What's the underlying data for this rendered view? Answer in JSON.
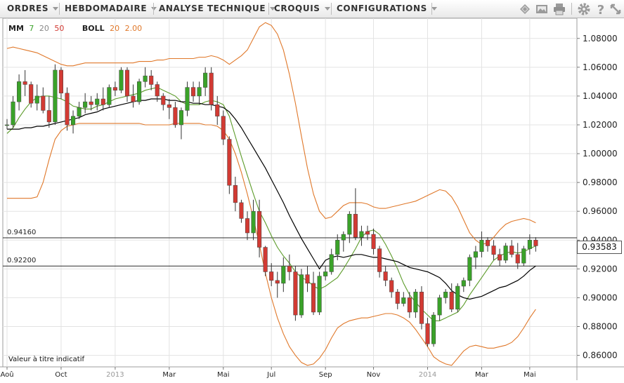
{
  "toolbar": {
    "menus": [
      {
        "label": "ORDRES"
      },
      {
        "label": "HEBDOMADAIRE"
      },
      {
        "label": "ANALYSE TECHNIQUE"
      },
      {
        "label": "CROQUIS"
      },
      {
        "label": "CONFIGURATIONS"
      }
    ],
    "icons": [
      "layers-icon",
      "image-icon",
      "print-icon",
      "gear-icon",
      "help-icon",
      "expand-icon"
    ]
  },
  "legend": {
    "mm_label": "MM",
    "mm_periods": [
      "7",
      "20",
      "50"
    ],
    "boll_label": "BOLL",
    "boll_params": [
      "20",
      "2.00"
    ]
  },
  "current_price": "0.93583",
  "footnote": "Valeur à titre indicatif",
  "colors": {
    "up_candle": "#3aa229",
    "down_candle": "#d23a33",
    "ma_short": "#5c9b2a",
    "ma_long": "#000000",
    "bollinger": "#e0782a",
    "grid": "#e3e3e3"
  },
  "chart_data": {
    "type": "candlestick",
    "ylim": [
      0.852,
      1.094
    ],
    "y_ticks": [
      "1.08000",
      "1.06000",
      "1.04000",
      "1.02000",
      "1.00000",
      "0.98000",
      "0.96000",
      "0.94000",
      "0.92000",
      "0.90000",
      "0.88000",
      "0.86000"
    ],
    "x_ticks": [
      {
        "week": 0,
        "label": "Aoû"
      },
      {
        "week": 9,
        "label": "Oct"
      },
      {
        "week": 18,
        "label": "2013"
      },
      {
        "week": 27,
        "label": "Mar"
      },
      {
        "week": 36,
        "label": "Mai"
      },
      {
        "week": 44,
        "label": "Jul"
      },
      {
        "week": 53,
        "label": "Sep"
      },
      {
        "week": 61,
        "label": "Nov"
      },
      {
        "week": 70,
        "label": "2014"
      },
      {
        "week": 79,
        "label": "Mar"
      },
      {
        "week": 87,
        "label": "Mai"
      }
    ],
    "horizontal_lines": [
      {
        "value": 0.9416,
        "label": "0.94160"
      },
      {
        "value": 0.922,
        "label": "0.92200"
      }
    ],
    "candles": [
      [
        1.02,
        1.024,
        1.017,
        1.02
      ],
      [
        1.02,
        1.04,
        1.018,
        1.036
      ],
      [
        1.036,
        1.055,
        1.03,
        1.05
      ],
      [
        1.05,
        1.058,
        1.04,
        1.048
      ],
      [
        1.048,
        1.05,
        1.032,
        1.035
      ],
      [
        1.035,
        1.048,
        1.03,
        1.04
      ],
      [
        1.04,
        1.046,
        1.028,
        1.03
      ],
      [
        1.03,
        1.04,
        1.018,
        1.022
      ],
      [
        1.022,
        1.062,
        1.02,
        1.058
      ],
      [
        1.058,
        1.06,
        1.038,
        1.042
      ],
      [
        1.042,
        1.046,
        1.016,
        1.02
      ],
      [
        1.02,
        1.03,
        1.014,
        1.026
      ],
      [
        1.026,
        1.036,
        1.024,
        1.032
      ],
      [
        1.032,
        1.042,
        1.028,
        1.036
      ],
      [
        1.036,
        1.04,
        1.03,
        1.034
      ],
      [
        1.034,
        1.042,
        1.03,
        1.038
      ],
      [
        1.038,
        1.046,
        1.03,
        1.034
      ],
      [
        1.034,
        1.048,
        1.032,
        1.046
      ],
      [
        1.046,
        1.05,
        1.04,
        1.044
      ],
      [
        1.044,
        1.06,
        1.042,
        1.058
      ],
      [
        1.058,
        1.06,
        1.036,
        1.04
      ],
      [
        1.04,
        1.048,
        1.032,
        1.036
      ],
      [
        1.036,
        1.052,
        1.034,
        1.05
      ],
      [
        1.05,
        1.06,
        1.046,
        1.054
      ],
      [
        1.054,
        1.058,
        1.044,
        1.048
      ],
      [
        1.048,
        1.05,
        1.036,
        1.04
      ],
      [
        1.04,
        1.042,
        1.03,
        1.034
      ],
      [
        1.034,
        1.038,
        1.024,
        1.032
      ],
      [
        1.032,
        1.036,
        1.018,
        1.02
      ],
      [
        1.02,
        1.032,
        1.01,
        1.03
      ],
      [
        1.03,
        1.05,
        1.026,
        1.046
      ],
      [
        1.046,
        1.05,
        1.036,
        1.04
      ],
      [
        1.04,
        1.05,
        1.034,
        1.046
      ],
      [
        1.046,
        1.06,
        1.04,
        1.056
      ],
      [
        1.056,
        1.06,
        1.03,
        1.034
      ],
      [
        1.034,
        1.04,
        1.02,
        1.026
      ],
      [
        1.026,
        1.03,
        1.006,
        1.01
      ],
      [
        1.01,
        1.012,
        0.972,
        0.978
      ],
      [
        0.978,
        0.984,
        0.96,
        0.966
      ],
      [
        0.966,
        0.968,
        0.952,
        0.955
      ],
      [
        0.955,
        0.96,
        0.94,
        0.945
      ],
      [
        0.945,
        0.968,
        0.94,
        0.96
      ],
      [
        0.96,
        0.968,
        0.928,
        0.935
      ],
      [
        0.935,
        0.936,
        0.915,
        0.918
      ],
      [
        0.918,
        0.924,
        0.908,
        0.912
      ],
      [
        0.912,
        0.918,
        0.9,
        0.91
      ],
      [
        0.91,
        0.928,
        0.904,
        0.922
      ],
      [
        0.922,
        0.93,
        0.912,
        0.918
      ],
      [
        0.918,
        0.922,
        0.884,
        0.888
      ],
      [
        0.888,
        0.92,
        0.886,
        0.916
      ],
      [
        0.916,
        0.922,
        0.904,
        0.91
      ],
      [
        0.91,
        0.918,
        0.888,
        0.89
      ],
      [
        0.89,
        0.918,
        0.888,
        0.915
      ],
      [
        0.915,
        0.922,
        0.912,
        0.918
      ],
      [
        0.918,
        0.934,
        0.916,
        0.93
      ],
      [
        0.93,
        0.944,
        0.926,
        0.94
      ],
      [
        0.94,
        0.946,
        0.932,
        0.944
      ],
      [
        0.944,
        0.96,
        0.938,
        0.958
      ],
      [
        0.958,
        0.976,
        0.94,
        0.942
      ],
      [
        0.942,
        0.95,
        0.936,
        0.946
      ],
      [
        0.946,
        0.95,
        0.94,
        0.944
      ],
      [
        0.944,
        0.948,
        0.93,
        0.934
      ],
      [
        0.934,
        0.936,
        0.914,
        0.918
      ],
      [
        0.918,
        0.922,
        0.908,
        0.912
      ],
      [
        0.912,
        0.914,
        0.9,
        0.904
      ],
      [
        0.904,
        0.906,
        0.892,
        0.896
      ],
      [
        0.896,
        0.904,
        0.894,
        0.9
      ],
      [
        0.9,
        0.904,
        0.886,
        0.89
      ],
      [
        0.89,
        0.906,
        0.886,
        0.904
      ],
      [
        0.904,
        0.908,
        0.878,
        0.882
      ],
      [
        0.882,
        0.886,
        0.866,
        0.868
      ],
      [
        0.868,
        0.89,
        0.866,
        0.888
      ],
      [
        0.888,
        0.902,
        0.884,
        0.9
      ],
      [
        0.9,
        0.906,
        0.896,
        0.904
      ],
      [
        0.904,
        0.91,
        0.89,
        0.892
      ],
      [
        0.892,
        0.91,
        0.89,
        0.908
      ],
      [
        0.908,
        0.914,
        0.904,
        0.912
      ],
      [
        0.912,
        0.93,
        0.908,
        0.928
      ],
      [
        0.928,
        0.936,
        0.92,
        0.932
      ],
      [
        0.932,
        0.946,
        0.928,
        0.94
      ],
      [
        0.94,
        0.942,
        0.932,
        0.936
      ],
      [
        0.936,
        0.94,
        0.926,
        0.93
      ],
      [
        0.93,
        0.934,
        0.922,
        0.926
      ],
      [
        0.926,
        0.938,
        0.924,
        0.936
      ],
      [
        0.936,
        0.94,
        0.928,
        0.93
      ],
      [
        0.93,
        0.938,
        0.92,
        0.924
      ],
      [
        0.924,
        0.936,
        0.922,
        0.934
      ],
      [
        0.934,
        0.944,
        0.93,
        0.94
      ],
      [
        0.94,
        0.942,
        0.932,
        0.936
      ]
    ],
    "series": [
      {
        "type": "line",
        "color_key": "ma_short",
        "values": [
          1.014,
          1.018,
          1.025,
          1.031,
          1.036,
          1.039,
          1.04,
          1.04,
          1.039,
          1.038,
          1.036,
          1.033,
          1.032,
          1.031,
          1.031,
          1.033,
          1.034,
          1.036,
          1.038,
          1.039,
          1.04,
          1.041,
          1.042,
          1.044,
          1.045,
          1.046,
          1.044,
          1.042,
          1.04,
          1.036,
          1.034,
          1.034,
          1.034,
          1.036,
          1.037,
          1.036,
          1.034,
          1.026,
          1.012,
          0.998,
          0.985,
          0.972,
          0.96,
          0.952,
          0.943,
          0.935,
          0.929,
          0.924,
          0.918,
          0.914,
          0.912,
          0.908,
          0.906,
          0.908,
          0.911,
          0.914,
          0.92,
          0.927,
          0.934,
          0.942,
          0.946,
          0.947,
          0.944,
          0.937,
          0.929,
          0.92,
          0.91,
          0.902,
          0.897,
          0.892,
          0.888,
          0.884,
          0.884,
          0.886,
          0.888,
          0.89,
          0.895,
          0.902,
          0.908,
          0.914,
          0.92,
          0.926,
          0.929,
          0.931,
          0.932,
          0.931,
          0.932,
          0.934,
          0.936
        ]
      },
      {
        "type": "line",
        "color_key": "ma_long",
        "values": [
          1.017,
          1.017,
          1.017,
          1.018,
          1.018,
          1.019,
          1.019,
          1.02,
          1.021,
          1.022,
          1.023,
          1.024,
          1.025,
          1.027,
          1.028,
          1.029,
          1.031,
          1.032,
          1.033,
          1.034,
          1.035,
          1.036,
          1.037,
          1.037,
          1.038,
          1.038,
          1.038,
          1.037,
          1.037,
          1.036,
          1.036,
          1.035,
          1.035,
          1.034,
          1.034,
          1.033,
          1.032,
          1.029,
          1.024,
          1.018,
          1.011,
          1.004,
          0.997,
          0.99,
          0.982,
          0.974,
          0.966,
          0.957,
          0.949,
          0.941,
          0.934,
          0.927,
          0.92,
          0.926,
          0.928,
          0.929,
          0.928,
          0.929,
          0.93,
          0.93,
          0.929,
          0.928,
          0.928,
          0.927,
          0.926,
          0.925,
          0.923,
          0.921,
          0.92,
          0.919,
          0.918,
          0.916,
          0.914,
          0.91,
          0.905,
          0.902,
          0.9,
          0.899,
          0.9,
          0.901,
          0.903,
          0.905,
          0.907,
          0.908,
          0.91,
          0.912,
          0.915,
          0.919,
          0.922
        ]
      },
      {
        "type": "line",
        "color_key": "bollinger",
        "values": [
          1.073,
          1.074,
          1.073,
          1.072,
          1.071,
          1.07,
          1.068,
          1.066,
          1.064,
          1.062,
          1.061,
          1.061,
          1.062,
          1.063,
          1.063,
          1.063,
          1.063,
          1.063,
          1.063,
          1.063,
          1.063,
          1.063,
          1.064,
          1.064,
          1.064,
          1.065,
          1.065,
          1.066,
          1.066,
          1.066,
          1.066,
          1.066,
          1.067,
          1.067,
          1.068,
          1.067,
          1.065,
          1.062,
          1.065,
          1.068,
          1.072,
          1.08,
          1.088,
          1.091,
          1.089,
          1.083,
          1.072,
          1.055,
          1.035,
          1.012,
          0.99,
          0.972,
          0.96,
          0.955,
          0.956,
          0.96,
          0.964,
          0.966,
          0.966,
          0.966,
          0.965,
          0.963,
          0.962,
          0.962,
          0.963,
          0.964,
          0.965,
          0.966,
          0.967,
          0.969,
          0.971,
          0.973,
          0.975,
          0.974,
          0.97,
          0.963,
          0.954,
          0.945,
          0.94,
          0.937,
          0.938,
          0.942,
          0.947,
          0.951,
          0.953,
          0.954,
          0.955,
          0.954,
          0.952
        ]
      },
      {
        "type": "line",
        "color_key": "bollinger",
        "values": [
          0.969,
          0.969,
          0.969,
          0.969,
          0.969,
          0.97,
          0.98,
          0.996,
          1.01,
          1.016,
          1.019,
          1.02,
          1.021,
          1.021,
          1.021,
          1.021,
          1.021,
          1.021,
          1.021,
          1.021,
          1.021,
          1.021,
          1.021,
          1.02,
          1.02,
          1.02,
          1.02,
          1.02,
          1.021,
          1.021,
          1.021,
          1.021,
          1.021,
          1.02,
          1.02,
          1.019,
          1.016,
          1.01,
          1.0,
          0.987,
          0.972,
          0.955,
          0.937,
          0.917,
          0.9,
          0.886,
          0.875,
          0.866,
          0.86,
          0.855,
          0.853,
          0.854,
          0.858,
          0.864,
          0.872,
          0.879,
          0.882,
          0.884,
          0.885,
          0.886,
          0.886,
          0.887,
          0.888,
          0.889,
          0.889,
          0.888,
          0.886,
          0.883,
          0.878,
          0.872,
          0.866,
          0.859,
          0.856,
          0.854,
          0.853,
          0.858,
          0.863,
          0.866,
          0.867,
          0.866,
          0.865,
          0.865,
          0.866,
          0.867,
          0.869,
          0.873,
          0.879,
          0.886,
          0.892
        ]
      }
    ]
  }
}
